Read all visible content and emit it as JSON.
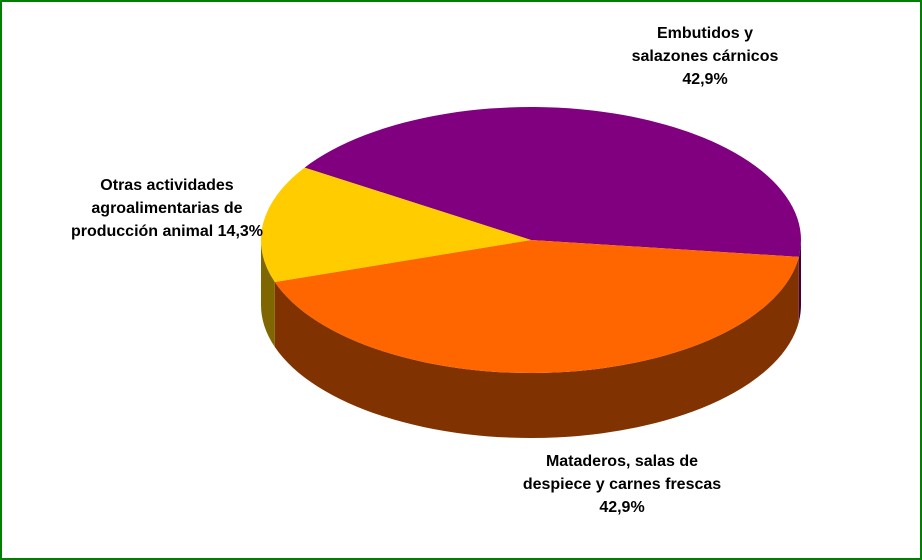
{
  "chart_data": {
    "type": "pie",
    "categories": [
      "Embutidos y salazones cárnicos",
      "Mataderos, salas de despiece y carnes frescas",
      "Otras actividades agroalimentarias de producción animal"
    ],
    "values": [
      42.9,
      42.9,
      14.3
    ],
    "value_labels": [
      "42,9%",
      "42,9%",
      "14,3%"
    ],
    "colors": [
      "#800080",
      "#ff6600",
      "#ffcc00"
    ]
  }
}
